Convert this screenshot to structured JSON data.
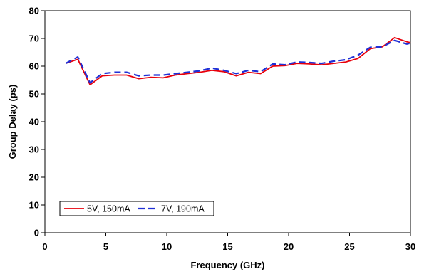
{
  "chart_data": {
    "type": "line",
    "title": "",
    "xlabel": "Frequency (GHz)",
    "ylabel": "Group Delay (ps)",
    "xlim": [
      0,
      30
    ],
    "ylim": [
      0,
      80
    ],
    "xticks": [
      0,
      5,
      10,
      15,
      20,
      25,
      30
    ],
    "yticks": [
      0,
      10,
      20,
      30,
      40,
      50,
      60,
      70,
      80
    ],
    "grid": false,
    "legend_position": "bottom-left",
    "series": [
      {
        "name": "5V, 150mA",
        "color": "#e8000b",
        "style": "solid",
        "x": [
          1.7,
          2.7,
          3.7,
          4.7,
          5.7,
          6.7,
          7.7,
          8.7,
          9.7,
          10.7,
          11.7,
          12.7,
          13.7,
          14.7,
          15.7,
          16.7,
          17.7,
          18.7,
          19.7,
          20.7,
          21.7,
          22.7,
          23.7,
          24.7,
          25.7,
          26.7,
          27.7,
          28.7,
          29.7,
          30.0
        ],
        "y": [
          61.0,
          62.5,
          53.3,
          56.5,
          56.8,
          56.8,
          55.5,
          56.0,
          55.8,
          56.8,
          57.3,
          57.8,
          58.5,
          58.0,
          56.5,
          57.8,
          57.3,
          60.0,
          60.2,
          61.0,
          60.8,
          60.5,
          61.0,
          61.5,
          62.8,
          66.3,
          67.0,
          70.3,
          68.8,
          68.5
        ]
      },
      {
        "name": "7V, 190mA",
        "color": "#1f2fd6",
        "style": "dashed",
        "x": [
          1.7,
          2.7,
          3.7,
          4.7,
          5.7,
          6.7,
          7.7,
          8.7,
          9.7,
          10.7,
          11.7,
          12.7,
          13.7,
          14.7,
          15.7,
          16.7,
          17.7,
          18.7,
          19.7,
          20.7,
          21.7,
          22.7,
          23.7,
          24.7,
          25.7,
          26.7,
          27.7,
          28.7,
          29.7,
          30.0
        ],
        "y": [
          61.0,
          63.3,
          54.0,
          57.3,
          57.8,
          57.8,
          56.5,
          56.8,
          56.8,
          57.3,
          57.8,
          58.3,
          59.3,
          58.5,
          57.3,
          58.5,
          58.0,
          60.8,
          60.5,
          61.5,
          61.3,
          61.0,
          61.8,
          62.3,
          64.0,
          66.8,
          67.0,
          69.3,
          68.0,
          68.3
        ]
      }
    ]
  }
}
